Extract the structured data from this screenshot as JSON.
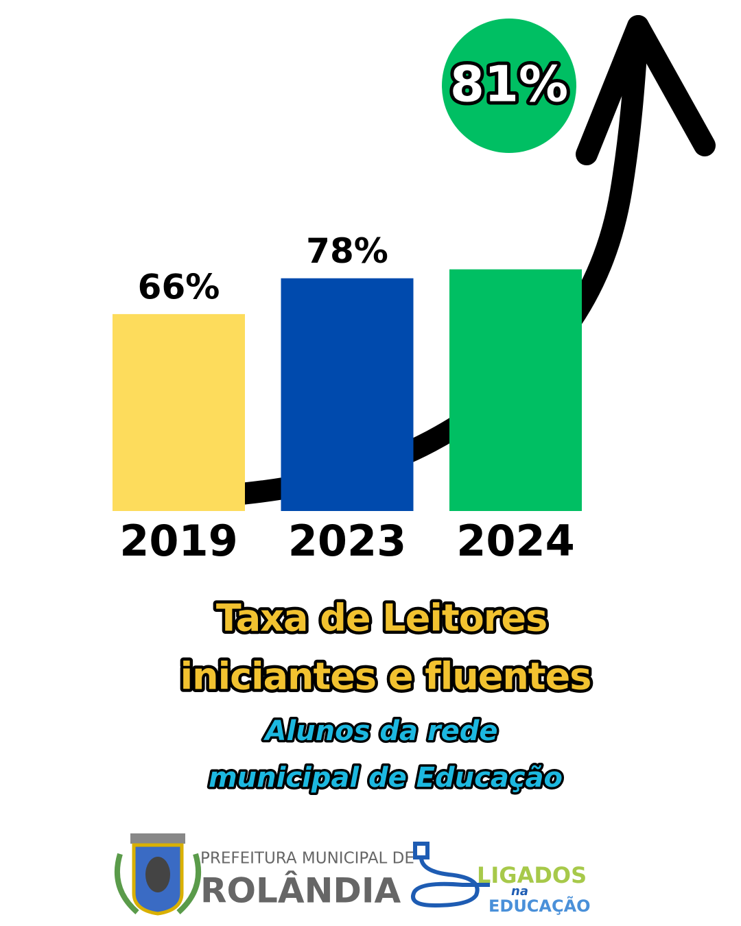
{
  "chart_data": {
    "type": "bar",
    "categories": [
      "2019",
      "2023",
      "2024"
    ],
    "values": [
      66,
      78,
      81
    ],
    "value_labels": [
      "66%",
      "78%",
      "81%"
    ],
    "colors": [
      "#fddc5c",
      "#004aad",
      "#00bf63"
    ],
    "title": [
      "Taxa de Leitores",
      "iniciantes e fluentes"
    ],
    "subtitle": [
      "Alunos  da  rede",
      "municipal  de  Educação"
    ]
  },
  "footer": {
    "prefeitura": "PREFEITURA MUNICIPAL DE",
    "city": "ROLÂNDIA",
    "program": [
      "LIGADOS",
      "na",
      "EDUCAÇÃO"
    ]
  }
}
